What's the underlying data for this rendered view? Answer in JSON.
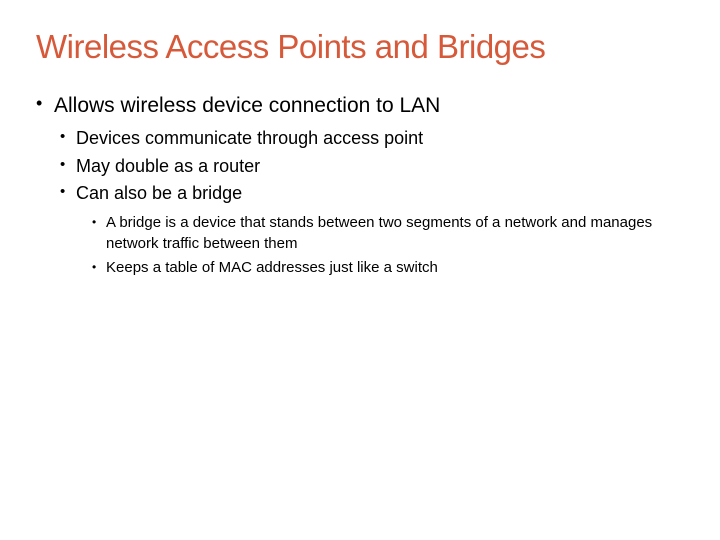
{
  "title": {
    "text": "Wireless Access Points and Bridges",
    "color": "#d65a3a",
    "fontsize": 33,
    "weight": 400
  },
  "colors": {
    "background": "#ffffff",
    "body_text": "#000000",
    "bullet": "#000000"
  },
  "typography": {
    "family": "Arial, Helvetica, sans-serif",
    "lvl1_fontsize": 21,
    "lvl2_fontsize": 18,
    "lvl3_fontsize": 15
  },
  "bullets": {
    "lvl1": [
      "Allows wireless device connection to LAN"
    ],
    "lvl2": [
      "Devices communicate through access point",
      "May double as a router",
      "Can also be a bridge"
    ],
    "lvl3": [
      "A bridge is a device that stands between two segments of a network and manages network traffic between them",
      "Keeps a table of MAC addresses just like a switch"
    ]
  }
}
